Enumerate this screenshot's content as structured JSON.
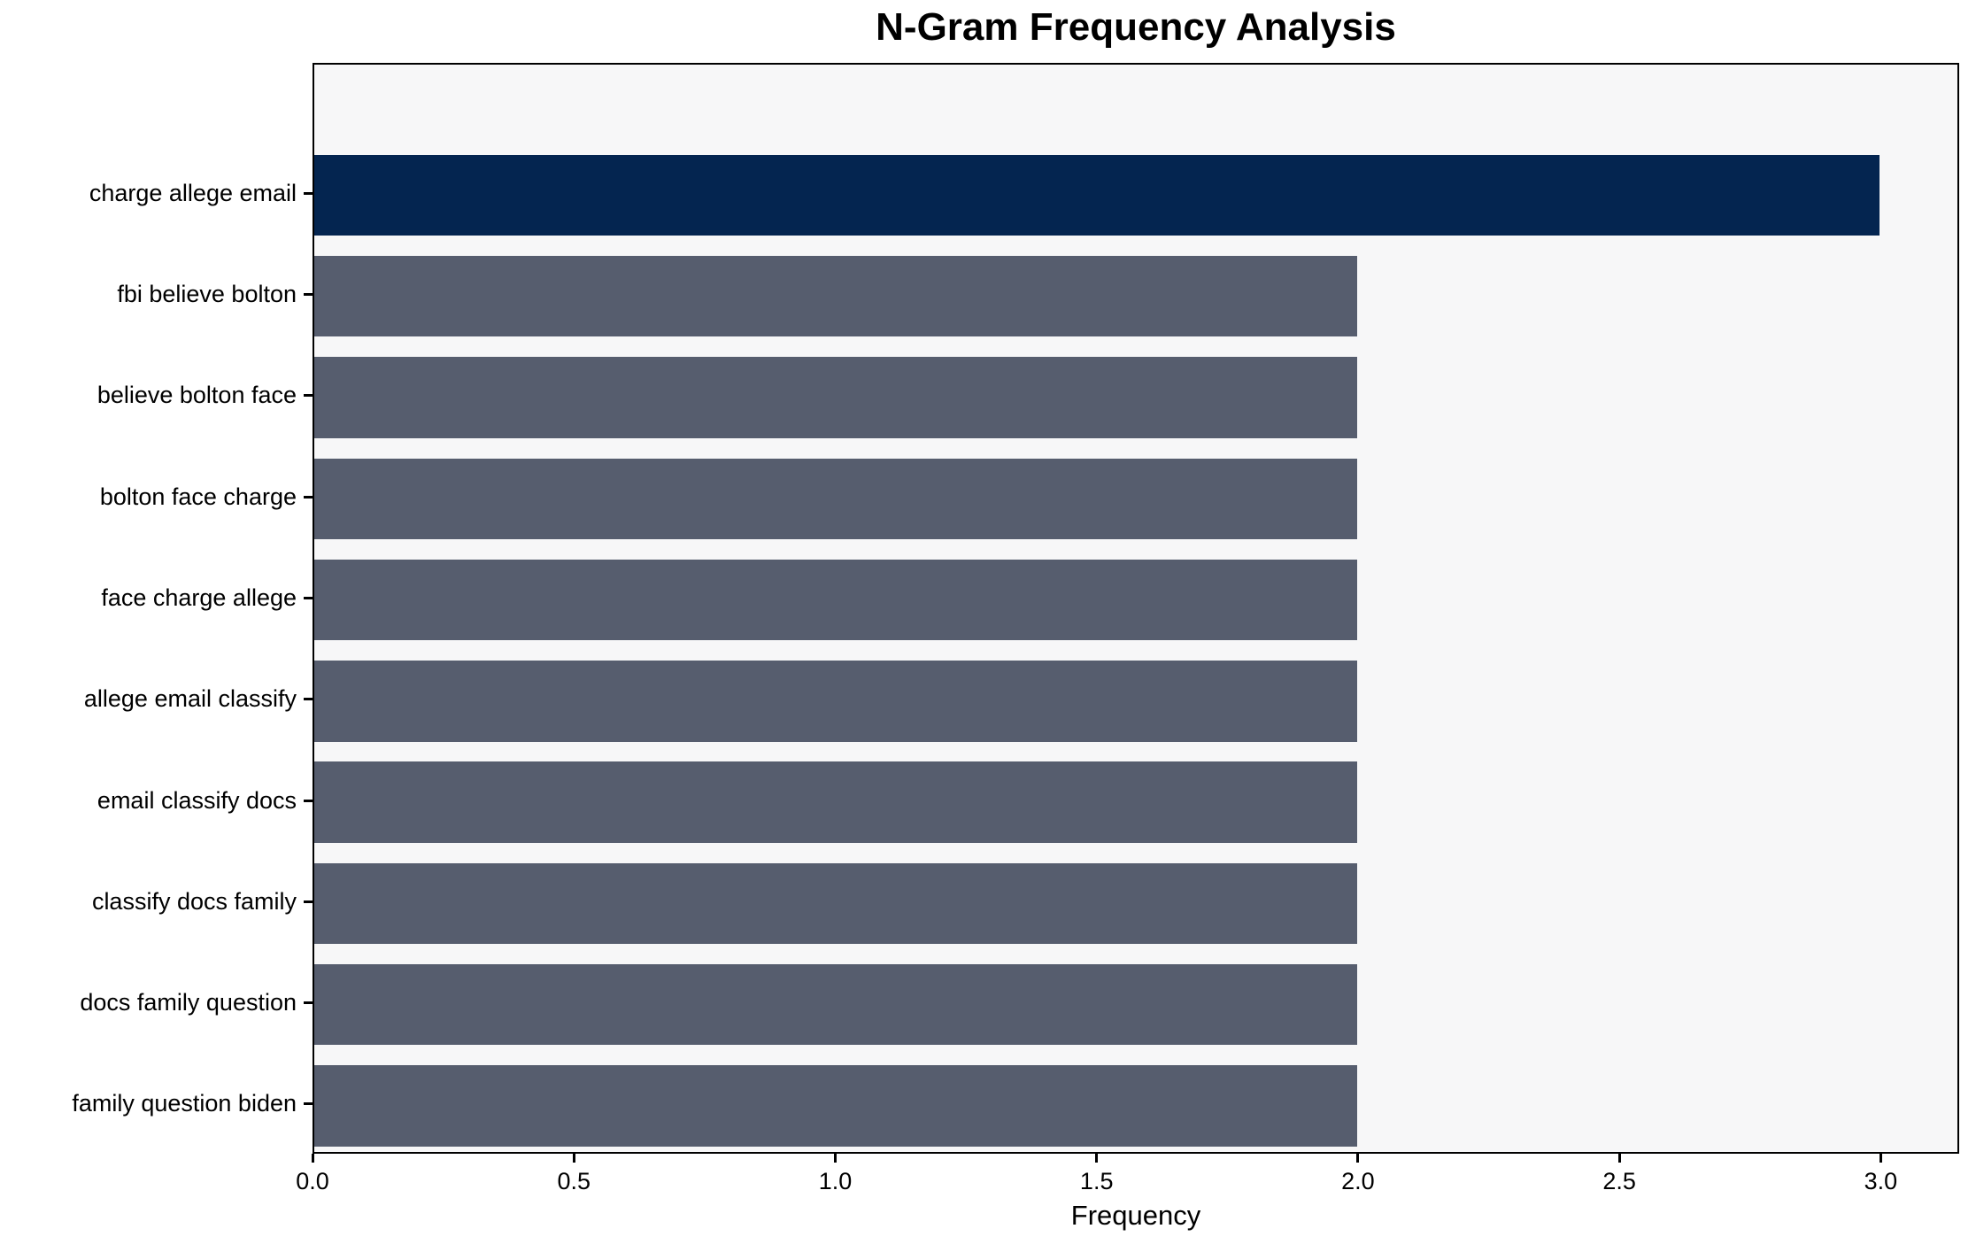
{
  "chart_data": {
    "type": "bar",
    "orientation": "horizontal",
    "title": "N-Gram Frequency Analysis",
    "xlabel": "Frequency",
    "ylabel": "",
    "categories": [
      "charge allege email",
      "fbi believe bolton",
      "believe bolton face",
      "bolton face charge",
      "face charge allege",
      "allege email classify",
      "email classify docs",
      "classify docs family",
      "docs family question",
      "family question biden"
    ],
    "values": [
      3,
      2,
      2,
      2,
      2,
      2,
      2,
      2,
      2,
      2
    ],
    "bar_colors": [
      "#042550",
      "#565D6E",
      "#565D6E",
      "#565D6E",
      "#565D6E",
      "#565D6E",
      "#565D6E",
      "#565D6E",
      "#565D6E",
      "#565D6E"
    ],
    "xlim": [
      0,
      3.15
    ],
    "xticks": [
      0.0,
      0.5,
      1.0,
      1.5,
      2.0,
      2.5,
      3.0
    ],
    "xtick_labels": [
      "0.0",
      "0.5",
      "1.0",
      "1.5",
      "2.0",
      "2.5",
      "3.0"
    ],
    "grid": false,
    "legend": null,
    "colors": {
      "highlight_bar": "#042550",
      "default_bar": "#565D6E",
      "plot_background": "#F7F7F8",
      "figure_background": "#FFFFFF",
      "spine": "#000000",
      "text": "#000000"
    }
  }
}
